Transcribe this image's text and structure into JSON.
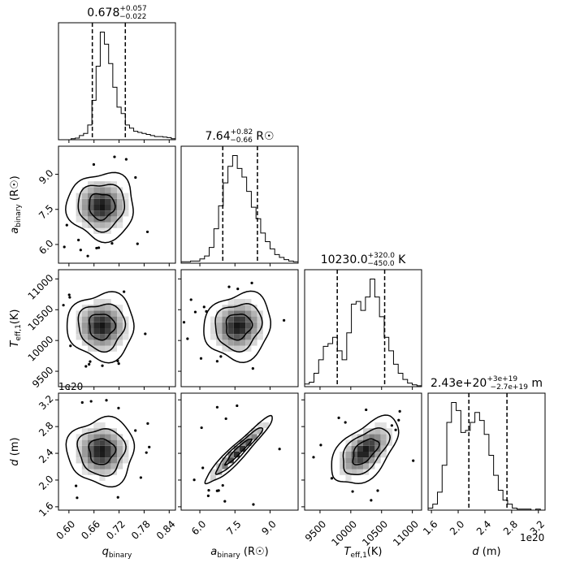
{
  "chart_data": {
    "type": "corner",
    "params": [
      {
        "key": "q",
        "label_main": "q",
        "label_sub": "binary",
        "label_unit": "",
        "ticks": [
          0.6,
          0.66,
          0.72,
          0.78,
          0.84
        ],
        "tick_labels": [
          "0.60",
          "0.66",
          "0.72",
          "0.78",
          "0.84"
        ],
        "range": [
          0.575,
          0.855
        ]
      },
      {
        "key": "a",
        "label_main": "a",
        "label_sub": "binary",
        "label_unit": " (R☉)",
        "ticks": [
          6.0,
          7.5,
          9.0
        ],
        "tick_labels": [
          "6.0",
          "7.5",
          "9.0"
        ],
        "range": [
          5.2,
          10.2
        ]
      },
      {
        "key": "t",
        "label_main": "T",
        "label_sub": "eff,1",
        "label_unit": "(K)",
        "ticks": [
          9500,
          10000,
          10500,
          11000
        ],
        "tick_labels": [
          "9500",
          "10000",
          "10500",
          "11000"
        ],
        "range": [
          9250,
          11150
        ]
      },
      {
        "key": "d",
        "label_main": "d",
        "label_sub": "",
        "label_unit": " (m)",
        "ticks": [
          1.6,
          2.0,
          2.4,
          2.8,
          3.2
        ],
        "tick_labels": [
          "1.6",
          "2.0",
          "2.4",
          "2.8",
          "3.2"
        ],
        "range": [
          1.55,
          3.3
        ]
      }
    ],
    "titles": [
      {
        "main": "0.678",
        "sup": "+0.057",
        "sub": "−0.022",
        "unit": ""
      },
      {
        "main": "7.64",
        "sup": "+0.82",
        "sub": "−0.66",
        "unit": " R☉"
      },
      {
        "main": "10230.0",
        "sup": "+320.0",
        "sub": "−450.0",
        "unit": " K"
      },
      {
        "main": "2.43e+20",
        "sup": "+3e+19",
        "sub": "−2.7e+19",
        "unit": " m"
      }
    ],
    "offset_text": "1e20",
    "quantiles": {
      "q": [
        0.656,
        0.735
      ],
      "a": [
        6.98,
        8.46
      ],
      "t": [
        9780,
        10550
      ],
      "d": [
        2.16,
        2.73
      ]
    },
    "histograms": {
      "q": {
        "edges_start": 0.575,
        "bin": 0.01,
        "counts": [
          0,
          0,
          0,
          2,
          3,
          8,
          12,
          28,
          75,
          140,
          205,
          182,
          145,
          100,
          62,
          50,
          28,
          22,
          16,
          14,
          12,
          10,
          8,
          6,
          6,
          5,
          4,
          2
        ]
      },
      "a": {
        "edges_start": 5.2,
        "bin": 0.2,
        "counts": [
          2,
          2,
          3,
          3,
          6,
          10,
          22,
          48,
          80,
          112,
          135,
          150,
          132,
          120,
          100,
          78,
          62,
          42,
          30,
          20,
          12,
          8,
          5,
          3,
          2
        ]
      },
      "t": {
        "edges_start": 9250,
        "bin": 76,
        "counts": [
          3,
          5,
          15,
          30,
          45,
          48,
          55,
          40,
          30,
          60,
          92,
          95,
          85,
          100,
          120,
          100,
          78,
          55,
          40,
          25,
          15,
          8,
          4,
          2,
          1
        ]
      },
      "d": {
        "edges_start": 1.55,
        "bin": 0.07,
        "counts": [
          2,
          6,
          18,
          45,
          88,
          108,
          100,
          78,
          80,
          88,
          98,
          90,
          76,
          55,
          35,
          20,
          10,
          6,
          2,
          1,
          1,
          1,
          0,
          1,
          0
        ]
      }
    },
    "medians": {
      "q": 0.678,
      "a": 7.64,
      "t": 10230,
      "d": 2.43
    },
    "correlations": {
      "q-a": 0.0,
      "q-t": 0.0,
      "a-t": 0.1,
      "q-d": 0.0,
      "a-d": 0.97,
      "t-d": 0.55
    }
  }
}
